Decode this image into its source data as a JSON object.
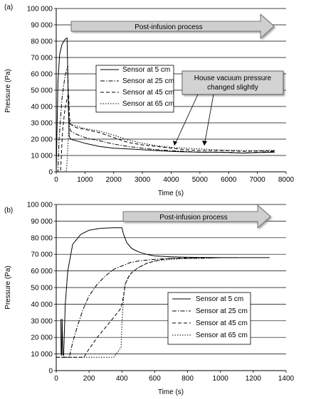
{
  "chart_data": [
    {
      "type": "line",
      "panel_label": "(a)",
      "xlabel": "Time (s)",
      "ylabel": "Pressure (Pa)",
      "xlim": [
        0,
        8000
      ],
      "ylim": [
        0,
        100000
      ],
      "xticks": [
        "0",
        "1000",
        "2000",
        "3000",
        "4000",
        "5000",
        "6000",
        "7000",
        "8000"
      ],
      "yticks": [
        "0",
        "10 000",
        "20 000",
        "30 000",
        "40 000",
        "50 000",
        "60 000",
        "70 000",
        "80 000",
        "90 000",
        "100 000"
      ],
      "grid": "horizontal",
      "arrow_label": "Post-infusion process",
      "annotation": "House vacuum pressure\nchanged slightly",
      "legend": [
        "Sensor at 5 cm",
        "Sensor at 25 cm",
        "Sensor at 45 cm",
        "Sensor at 65 cm"
      ],
      "series": [
        {
          "name": "Sensor at 5 cm",
          "style": "solid",
          "x": [
            0,
            60,
            120,
            200,
            300,
            380,
            420,
            450,
            500,
            700,
            1000,
            1500,
            2000,
            2500,
            3000,
            3500,
            4000,
            4500,
            5000,
            5500,
            6000,
            6500,
            7000,
            7600
          ],
          "y": [
            0,
            55000,
            72000,
            78000,
            81000,
            82000,
            40000,
            22000,
            20000,
            19000,
            17500,
            15500,
            14500,
            14000,
            13500,
            13000,
            12500,
            12200,
            12000,
            12000,
            11800,
            11500,
            11800,
            12000
          ]
        },
        {
          "name": "Sensor at 25 cm",
          "style": "dash-dot",
          "x": [
            0,
            60,
            100,
            200,
            300,
            400,
            430,
            460,
            500,
            700,
            1000,
            1500,
            2000,
            2500,
            3000,
            3500,
            4000,
            4500,
            5000,
            5500,
            6000,
            6500,
            7000,
            7600
          ],
          "y": [
            0,
            0,
            20000,
            45000,
            58000,
            65000,
            40000,
            28000,
            25000,
            23000,
            21000,
            19000,
            17000,
            15500,
            14500,
            13500,
            13000,
            12500,
            12000,
            12000,
            12000,
            11500,
            12000,
            12500
          ]
        },
        {
          "name": "Sensor at 45 cm",
          "style": "dashed",
          "x": [
            0,
            150,
            220,
            300,
            380,
            430,
            460,
            500,
            700,
            1000,
            1500,
            2000,
            2500,
            3000,
            3500,
            4000,
            4500,
            5000,
            5500,
            6000,
            6500,
            7000,
            7600
          ],
          "y": [
            0,
            0,
            25000,
            38000,
            45000,
            48000,
            33000,
            29000,
            27000,
            26000,
            24000,
            21000,
            18000,
            16500,
            15500,
            14500,
            13500,
            13000,
            13000,
            13000,
            12500,
            12800,
            13000
          ]
        },
        {
          "name": "Sensor at 65 cm",
          "style": "dotted",
          "x": [
            0,
            300,
            360,
            420,
            450,
            480,
            520,
            700,
            1000,
            1500,
            2000,
            2500,
            3000,
            3500,
            4000,
            4500,
            5000,
            5500,
            6000,
            6500,
            7000,
            7600
          ],
          "y": [
            0,
            0,
            1000,
            20000,
            30000,
            30000,
            29000,
            28000,
            26500,
            25000,
            22500,
            19500,
            17500,
            16000,
            15000,
            14500,
            14000,
            13500,
            13200,
            13000,
            13000,
            13200
          ]
        }
      ]
    },
    {
      "type": "line",
      "panel_label": "(b)",
      "xlabel": "Time (s)",
      "ylabel": "Pressure (Pa)",
      "xlim": [
        0,
        1400
      ],
      "ylim": [
        0,
        100000
      ],
      "xticks": [
        "0",
        "200",
        "400",
        "600",
        "800",
        "1000",
        "1200",
        "1400"
      ],
      "yticks": [
        "0",
        "10 000",
        "20 000",
        "30 000",
        "40 000",
        "50 000",
        "60 000",
        "70 000",
        "80 000",
        "90 000",
        "100 000"
      ],
      "grid": "horizontal",
      "arrow_label": "Post-infusion process",
      "legend": [
        "Sensor at 5 cm",
        "Sensor at 25 cm",
        "Sensor at 45 cm",
        "Sensor at 65 cm"
      ],
      "series": [
        {
          "name": "Sensor at 5 cm",
          "style": "solid",
          "x": [
            28,
            30,
            33,
            36,
            40,
            45,
            55,
            70,
            100,
            150,
            200,
            260,
            300,
            350,
            400,
            410,
            430,
            460,
            500,
            550,
            600,
            700,
            800,
            1000,
            1200,
            1300
          ],
          "y": [
            31000,
            10000,
            9000,
            31000,
            10000,
            9000,
            40000,
            60000,
            76000,
            82000,
            84500,
            85500,
            85800,
            86000,
            86000,
            82000,
            77000,
            73500,
            71500,
            70000,
            69000,
            68500,
            68200,
            68000,
            68000,
            68000
          ]
        },
        {
          "name": "Sensor at 25 cm",
          "style": "dash-dot",
          "x": [
            40,
            80,
            100,
            130,
            160,
            200,
            250,
            300,
            350,
            400,
            450,
            500,
            600,
            700,
            800,
            1000
          ],
          "y": [
            8000,
            8000,
            17000,
            27000,
            36000,
            45000,
            52000,
            57000,
            61000,
            63000,
            65000,
            66000,
            67000,
            67500,
            67500,
            68000
          ]
        },
        {
          "name": "Sensor at 45 cm",
          "style": "dashed",
          "x": [
            0,
            170,
            180,
            200,
            250,
            300,
            350,
            390,
            400,
            410,
            420,
            440,
            460,
            500,
            550,
            600,
            650,
            700,
            800,
            900,
            1000
          ],
          "y": [
            8000,
            8000,
            10000,
            13000,
            20000,
            26000,
            32000,
            37000,
            40000,
            45000,
            52000,
            56500,
            59000,
            62000,
            64500,
            66000,
            67000,
            67500,
            68000,
            68000,
            68000
          ]
        },
        {
          "name": "Sensor at 65 cm",
          "style": "dotted",
          "x": [
            0,
            300,
            350,
            380,
            395,
            400,
            410,
            420,
            440,
            460,
            500,
            550,
            600,
            700,
            800,
            900,
            1000,
            1100
          ],
          "y": [
            8000,
            8000,
            8000,
            12000,
            14000,
            28000,
            44000,
            52000,
            56000,
            59000,
            62000,
            64500,
            66000,
            67000,
            67500,
            67500,
            68000,
            68000
          ]
        }
      ]
    }
  ]
}
